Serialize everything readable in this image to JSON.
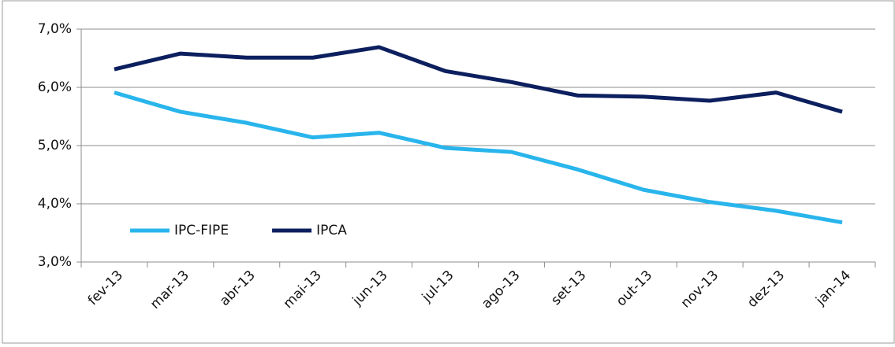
{
  "chart_data": {
    "type": "line",
    "categories": [
      "fev-13",
      "mar-13",
      "abr-13",
      "mai-13",
      "jun-13",
      "jul-13",
      "ago-13",
      "set-13",
      "out-13",
      "nov-13",
      "dez-13",
      "jan-14"
    ],
    "series": [
      {
        "name": "IPC-FIPE",
        "color": "#29b5ec",
        "values": [
          5.91,
          5.58,
          5.39,
          5.14,
          5.22,
          4.96,
          4.89,
          4.59,
          4.24,
          4.03,
          3.88,
          3.68
        ]
      },
      {
        "name": "IPCA",
        "color": "#0c1f5e",
        "values": [
          6.31,
          6.58,
          6.51,
          6.51,
          6.69,
          6.28,
          6.09,
          5.86,
          5.84,
          5.77,
          5.91,
          5.58
        ]
      }
    ],
    "ylim": [
      3,
      7
    ],
    "yticks": [
      {
        "value": 3,
        "label": "3,0%"
      },
      {
        "value": 4,
        "label": "4,0%"
      },
      {
        "value": 5,
        "label": "5,0%"
      },
      {
        "value": 6,
        "label": "6,0%"
      },
      {
        "value": 7,
        "label": "7,0%"
      }
    ],
    "grid": true,
    "legend": "lower left"
  }
}
